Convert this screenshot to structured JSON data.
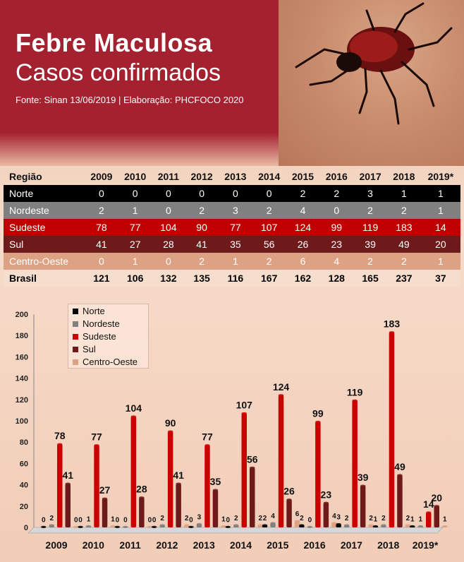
{
  "header": {
    "title": "Febre Maculosa",
    "subtitle": "Casos confirmados",
    "source": "Fonte: Sinan 13/06/2019 | Elaboração: PHCFOCO 2020"
  },
  "table": {
    "region_header": "Região",
    "years": [
      "2009",
      "2010",
      "2011",
      "2012",
      "2013",
      "2014",
      "2015",
      "2016",
      "2017",
      "2018",
      "2019*"
    ],
    "rows": [
      {
        "name": "Norte",
        "values": [
          "0",
          "0",
          "0",
          "0",
          "0",
          "0",
          "2",
          "2",
          "3",
          "1",
          "1"
        ]
      },
      {
        "name": "Nordeste",
        "values": [
          "2",
          "1",
          "0",
          "2",
          "3",
          "2",
          "4",
          "0",
          "2",
          "2",
          "1"
        ]
      },
      {
        "name": "Sudeste",
        "values": [
          "78",
          "77",
          "104",
          "90",
          "77",
          "107",
          "124",
          "99",
          "119",
          "183",
          "14"
        ]
      },
      {
        "name": "Sul",
        "values": [
          "41",
          "27",
          "28",
          "41",
          "35",
          "56",
          "26",
          "23",
          "39",
          "49",
          "20"
        ]
      },
      {
        "name": "Centro-Oeste",
        "values": [
          "0",
          "1",
          "0",
          "2",
          "1",
          "2",
          "6",
          "4",
          "2",
          "2",
          "1"
        ]
      },
      {
        "name": "Brasil",
        "values": [
          "121",
          "106",
          "132",
          "135",
          "116",
          "167",
          "162",
          "128",
          "165",
          "237",
          "37"
        ]
      }
    ]
  },
  "colors": {
    "Norte": "#000000",
    "Nordeste": "#808080",
    "Sudeste": "#cc0000",
    "Sul": "#6e1a1a",
    "Centro-Oeste": "#dda184"
  },
  "chart_data": {
    "type": "bar",
    "categories": [
      "2009",
      "2010",
      "2011",
      "2012",
      "2013",
      "2014",
      "2015",
      "2016",
      "2017",
      "2018",
      "2019*"
    ],
    "series": [
      {
        "name": "Norte",
        "values": [
          0,
          0,
          0,
          0,
          0,
          0,
          2,
          2,
          3,
          1,
          1
        ]
      },
      {
        "name": "Nordeste",
        "values": [
          2,
          1,
          0,
          2,
          3,
          2,
          4,
          0,
          2,
          2,
          1
        ]
      },
      {
        "name": "Sudeste",
        "values": [
          78,
          77,
          104,
          90,
          77,
          107,
          124,
          99,
          119,
          183,
          14
        ]
      },
      {
        "name": "Sul",
        "values": [
          41,
          27,
          28,
          41,
          35,
          56,
          26,
          23,
          39,
          49,
          20
        ]
      },
      {
        "name": "Centro-Oeste",
        "values": [
          0,
          1,
          0,
          2,
          1,
          2,
          6,
          4,
          2,
          2,
          1
        ]
      }
    ],
    "yticks": [
      "0",
      "20",
      "40",
      "60",
      "80",
      "100",
      "120",
      "140",
      "160",
      "180",
      "200"
    ],
    "ylim": [
      0,
      200
    ],
    "legend": "top-left",
    "grid": false
  }
}
